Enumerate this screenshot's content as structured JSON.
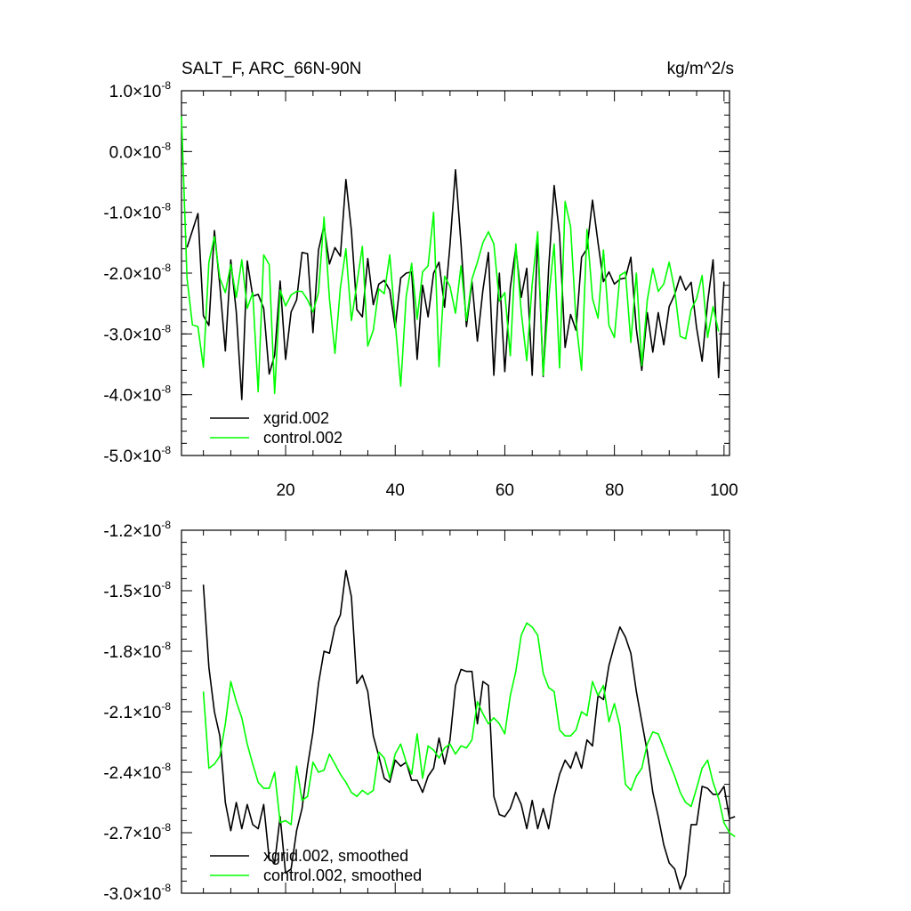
{
  "chart_data": [
    {
      "type": "line",
      "title": "SALT_F, ARC_66N-90N",
      "units": "kg/m^2/s",
      "xlim": [
        1,
        101
      ],
      "ylim": [
        -5e-08,
        1e-08
      ],
      "x_ticks": [
        20,
        40,
        60,
        80,
        100
      ],
      "x_tick_labels": [
        "20",
        "40",
        "60",
        "80",
        "100"
      ],
      "y_ticks": [
        1e-08,
        0.0,
        -1e-08,
        -2e-08,
        -3e-08,
        -4e-08,
        -5e-08
      ],
      "y_tick_labels": [
        {
          "mant": "1.0",
          "exp": "-8"
        },
        {
          "mant": "0.0",
          "exp": "-8"
        },
        {
          "mant": "-1.0",
          "exp": "-8"
        },
        {
          "mant": "-2.0",
          "exp": "-8"
        },
        {
          "mant": "-3.0",
          "exp": "-8"
        },
        {
          "mant": "-4.0",
          "exp": "-8"
        },
        {
          "mant": "-5.0",
          "exp": "-8"
        }
      ],
      "times_sign": "×10",
      "legend_position": "bottom-left",
      "series": [
        {
          "name": "xgrid.002",
          "color": "#000000",
          "x_start": 2,
          "values": [
            -1.58,
            -1.3,
            -1.02,
            -2.7,
            -2.86,
            -1.3,
            -2.2,
            -3.28,
            -1.78,
            -2.64,
            -4.08,
            -1.8,
            -2.38,
            -2.35,
            -2.58,
            -3.66,
            -3.35,
            -2.13,
            -3.42,
            -2.64,
            -2.44,
            -1.66,
            -1.68,
            -2.98,
            -1.62,
            -1.22,
            -1.85,
            -1.58,
            -1.72,
            -0.46,
            -1.3,
            -2.6,
            -2.72,
            -1.76,
            -2.52,
            -2.18,
            -2.12,
            -2.28,
            -2.9,
            -2.08,
            -2.0,
            -1.98,
            -3.42,
            -2.2,
            -2.72,
            -2.0,
            -1.82,
            -2.56,
            -1.54,
            -0.3,
            -1.52,
            -2.88,
            -2.14,
            -3.12,
            -2.28,
            -1.66,
            -3.68,
            -2.0,
            -3.62,
            -2.24,
            -1.58,
            -2.4,
            -1.92,
            -3.68,
            -1.42,
            -3.7,
            -1.92,
            -0.56,
            -1.38,
            -3.22,
            -2.68,
            -2.94,
            -1.74,
            -1.6,
            -0.8,
            -1.5,
            -2.14,
            -1.98,
            -2.18,
            -2.1,
            -2.08,
            -1.74,
            -2.92,
            -3.6,
            -2.65,
            -3.3,
            -2.65,
            -3.18,
            -2.55,
            -2.35,
            -2.05,
            -2.28,
            -2.15,
            -2.9,
            -3.45,
            -2.48,
            -1.78,
            -3.72,
            -2.14
          ]
        },
        {
          "name": "control.002",
          "color": "#00ff00",
          "x_start": 1,
          "values": [
            0.58,
            -2.08,
            -2.85,
            -2.88,
            -3.55,
            -1.82,
            -1.4,
            -2.08,
            -2.32,
            -1.86,
            -2.4,
            -1.78,
            -2.58,
            -2.32,
            -3.95,
            -1.7,
            -1.86,
            -3.98,
            -2.28,
            -2.54,
            -2.36,
            -2.3,
            -2.3,
            -2.44,
            -2.64,
            -2.32,
            -1.08,
            -2.42,
            -3.32,
            -2.24,
            -1.6,
            -2.78,
            -2.18,
            -1.56,
            -3.2,
            -2.94,
            -2.26,
            -2.34,
            -1.7,
            -2.8,
            -3.86,
            -2.38,
            -1.84,
            -2.76,
            -1.98,
            -1.88,
            -1.0,
            -3.54,
            -2.05,
            -2.22,
            -2.66,
            -1.88,
            -2.78,
            -2.1,
            -1.82,
            -1.5,
            -1.32,
            -1.52,
            -2.46,
            -2.32,
            -3.36,
            -1.52,
            -2.64,
            -3.44,
            -2.18,
            -1.32,
            -3.68,
            -2.42,
            -1.52,
            -3.56,
            -0.82,
            -1.24,
            -2.8,
            -3.6,
            -1.28,
            -2.42,
            -2.74,
            -1.62,
            -2.86,
            -3.06,
            -2.04,
            -1.98,
            -3.14,
            -2.0,
            -3.52,
            -2.44,
            -1.92,
            -2.3,
            -2.18,
            -1.82,
            -2.28,
            -3.04,
            -3.08,
            -2.6,
            -2.42,
            -2.04,
            -3.06,
            -2.55,
            -2.96
          ]
        }
      ]
    },
    {
      "type": "line",
      "title": "",
      "xlim": [
        1,
        101
      ],
      "ylim": [
        -3e-08,
        -1.2e-08
      ],
      "y_ticks": [
        -1.2e-08,
        -1.5e-08,
        -1.8e-08,
        -2.1e-08,
        -2.4e-08,
        -2.7e-08,
        -3e-08
      ],
      "y_tick_labels": [
        {
          "mant": "-1.2",
          "exp": "-8"
        },
        {
          "mant": "-1.5",
          "exp": "-8"
        },
        {
          "mant": "-1.8",
          "exp": "-8"
        },
        {
          "mant": "-2.1",
          "exp": "-8"
        },
        {
          "mant": "-2.4",
          "exp": "-8"
        },
        {
          "mant": "-2.7",
          "exp": "-8"
        },
        {
          "mant": "-3.0",
          "exp": "-8"
        }
      ],
      "times_sign": "×10",
      "legend_position": "bottom-left",
      "series": [
        {
          "name": "xgrid.002, smoothed",
          "color": "#000000",
          "x_start": 5,
          "values": [
            -1.47,
            -1.88,
            -2.1,
            -2.22,
            -2.55,
            -2.69,
            -2.55,
            -2.68,
            -2.56,
            -2.66,
            -2.68,
            -2.56,
            -2.83,
            -2.85,
            -2.62,
            -2.9,
            -2.88,
            -2.69,
            -2.58,
            -2.37,
            -2.2,
            -1.96,
            -1.8,
            -1.81,
            -1.68,
            -1.62,
            -1.4,
            -1.53,
            -1.96,
            -1.92,
            -2.0,
            -2.22,
            -2.32,
            -2.43,
            -2.45,
            -2.34,
            -2.37,
            -2.35,
            -2.44,
            -2.44,
            -2.5,
            -2.42,
            -2.38,
            -2.23,
            -2.36,
            -2.24,
            -1.97,
            -1.89,
            -1.9,
            -1.9,
            -2.16,
            -1.95,
            -1.97,
            -2.52,
            -2.61,
            -2.62,
            -2.58,
            -2.5,
            -2.56,
            -2.68,
            -2.54,
            -2.68,
            -2.58,
            -2.68,
            -2.52,
            -2.41,
            -2.34,
            -2.38,
            -2.3,
            -2.38,
            -2.24,
            -2.27,
            -2.02,
            -2.04,
            -1.87,
            -1.77,
            -1.68,
            -1.73,
            -1.81,
            -2.0,
            -2.15,
            -2.3,
            -2.5,
            -2.62,
            -2.76,
            -2.85,
            -2.88,
            -2.98,
            -2.91,
            -2.66,
            -2.66,
            -2.47,
            -2.48,
            -2.51,
            -2.51,
            -2.47,
            -2.63,
            -2.62
          ]
        },
        {
          "name": "control.002, smoothed",
          "color": "#00ff00",
          "x_start": 5,
          "values": [
            -2.0,
            -2.38,
            -2.36,
            -2.32,
            -2.16,
            -1.95,
            -2.05,
            -2.13,
            -2.26,
            -2.36,
            -2.45,
            -2.48,
            -2.48,
            -2.4,
            -2.65,
            -2.64,
            -2.66,
            -2.37,
            -2.54,
            -2.52,
            -2.35,
            -2.4,
            -2.39,
            -2.31,
            -2.36,
            -2.41,
            -2.45,
            -2.5,
            -2.52,
            -2.49,
            -2.51,
            -2.49,
            -2.3,
            -2.33,
            -2.43,
            -2.31,
            -2.26,
            -2.35,
            -2.41,
            -2.21,
            -2.43,
            -2.27,
            -2.29,
            -2.33,
            -2.28,
            -2.26,
            -2.31,
            -2.27,
            -2.28,
            -2.24,
            -2.05,
            -2.11,
            -2.16,
            -2.13,
            -2.16,
            -2.21,
            -2.02,
            -1.9,
            -1.72,
            -1.66,
            -1.68,
            -1.72,
            -1.91,
            -1.98,
            -2.0,
            -2.19,
            -2.22,
            -2.22,
            -2.19,
            -2.1,
            -2.12,
            -1.95,
            -2.02,
            -1.97,
            -2.15,
            -2.06,
            -2.17,
            -2.46,
            -2.49,
            -2.42,
            -2.38,
            -2.26,
            -2.2,
            -2.21,
            -2.28,
            -2.35,
            -2.42,
            -2.5,
            -2.55,
            -2.57,
            -2.48,
            -2.38,
            -2.34,
            -2.45,
            -2.53,
            -2.65,
            -2.7,
            -2.72
          ]
        }
      ]
    }
  ]
}
